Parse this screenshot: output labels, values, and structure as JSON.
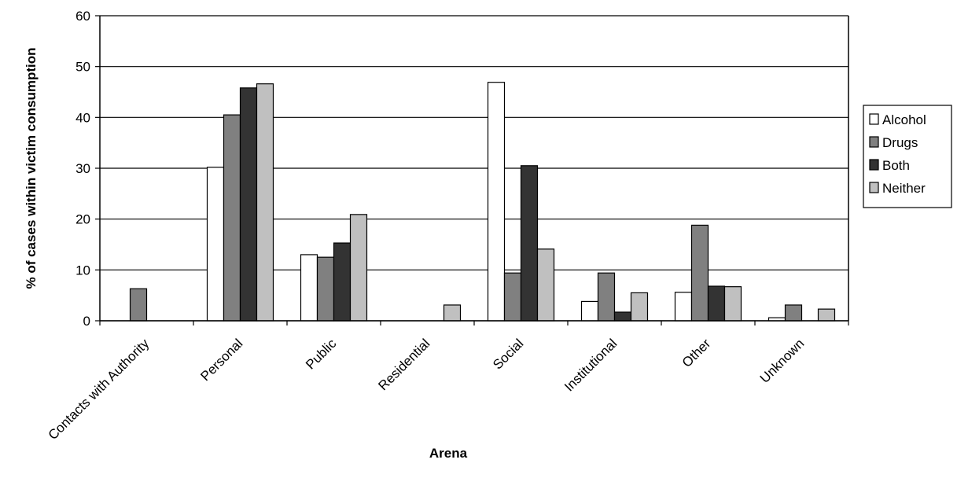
{
  "chart_data": {
    "type": "bar",
    "title": "",
    "xlabel": "Arena",
    "ylabel": "% of cases within victim consumption",
    "ylim": [
      0,
      60
    ],
    "yticks": [
      0,
      10,
      20,
      30,
      40,
      50,
      60
    ],
    "grid": true,
    "legend_position": "right",
    "categories": [
      "Contacts with Authority",
      "Personal",
      "Public",
      "Residential",
      "Social",
      "Institutional",
      "Other",
      "Unknown"
    ],
    "series": [
      {
        "name": "Alcohol",
        "color": "#ffffff",
        "values": [
          0,
          30.2,
          13.0,
          0,
          46.9,
          3.8,
          5.6,
          0.6
        ]
      },
      {
        "name": "Drugs",
        "color": "#808080",
        "values": [
          6.3,
          40.5,
          12.5,
          0,
          9.4,
          9.4,
          18.8,
          3.1
        ]
      },
      {
        "name": "Both",
        "color": "#333333",
        "values": [
          0,
          45.8,
          15.3,
          0,
          30.5,
          1.7,
          6.8,
          0
        ]
      },
      {
        "name": "Neither",
        "color": "#c0c0c0",
        "values": [
          0,
          46.6,
          20.9,
          3.1,
          14.1,
          5.5,
          6.7,
          2.3
        ]
      }
    ]
  }
}
